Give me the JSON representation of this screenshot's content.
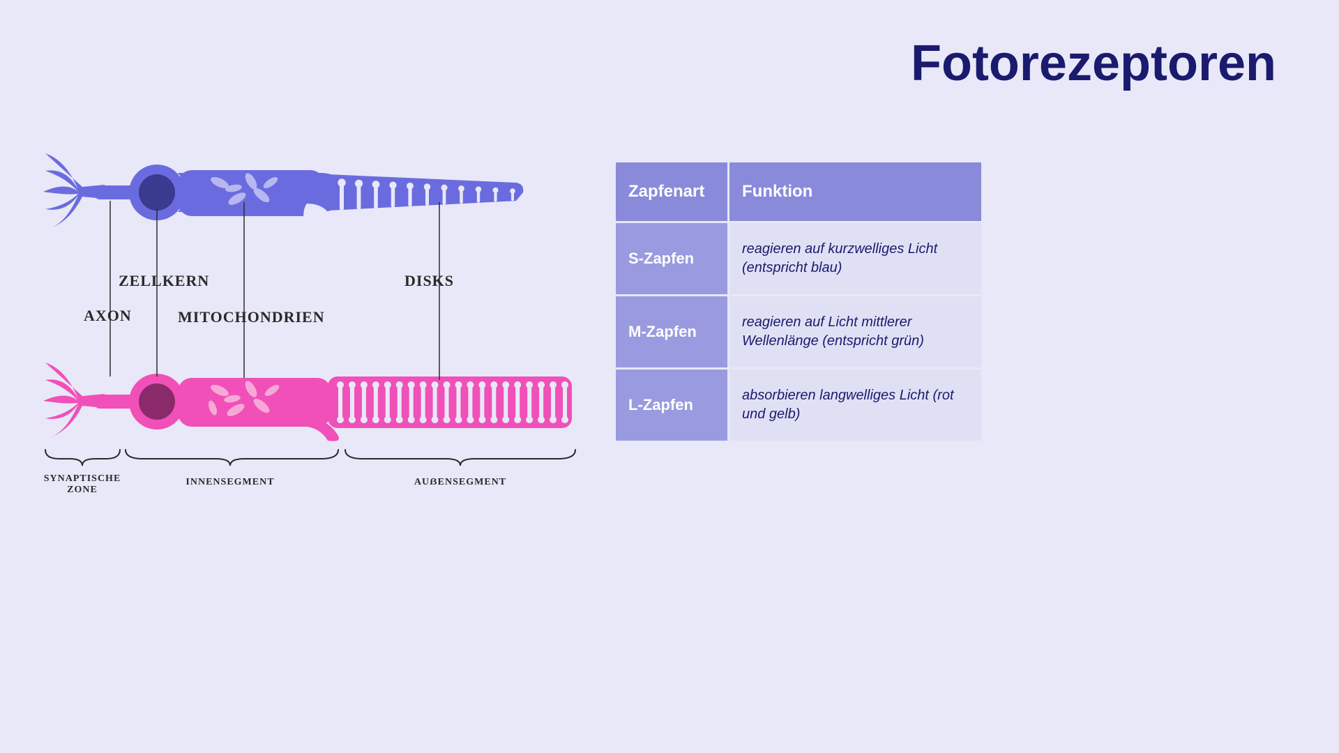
{
  "title": "Fotorezeptoren",
  "background_color": "#e8e8f8",
  "title_color": "#1a1a6e",
  "title_fontsize": 72,
  "diagram": {
    "cells": {
      "top": {
        "fill": "#6b6be0",
        "nucleus_fill": "#3a3a8e",
        "mito_fill": "#b8b8f0",
        "outer_count": 11
      },
      "bottom": {
        "fill": "#f050b8",
        "nucleus_fill": "#8a2a6a",
        "mito_fill": "#f8a8d8",
        "outer_count": 20
      }
    },
    "labels": {
      "axon": "AXON",
      "zellkern": "ZELLKERN",
      "mitochondrien": "MITOCHONDRIEN",
      "disks": "DISKS",
      "synaptische": "SYNAPTISCHE ZONE",
      "innensegment": "INNENSEGMENT",
      "aussensegment": "AUẞENSEGMENT"
    },
    "label_fontsize": 22,
    "small_label_fontsize": 14
  },
  "table": {
    "header_bg": "#8a8adb",
    "left_bg": "#9a9ae0",
    "right_bg": "#e0e0f5",
    "header_color": "#ffffff",
    "text_color": "#1a1a6e",
    "columns": [
      "Zapfenart",
      "Funktion"
    ],
    "rows": [
      [
        "S-Zapfen",
        "reagieren auf kurzwelliges Licht (entspricht blau)"
      ],
      [
        "M-Zapfen",
        "reagieren auf Licht mittlerer Wellenlänge (entspricht grün)"
      ],
      [
        "L-Zapfen",
        "absorbieren langwelliges Licht (rot und gelb)"
      ]
    ]
  }
}
